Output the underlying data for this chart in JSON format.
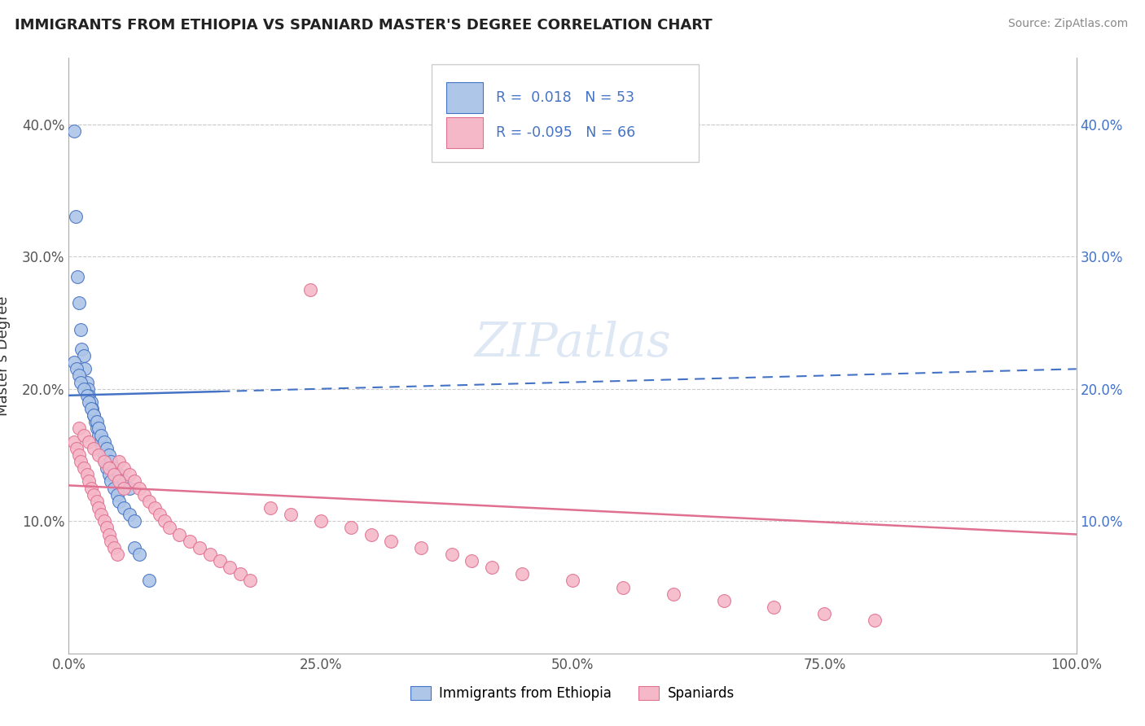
{
  "title": "IMMIGRANTS FROM ETHIOPIA VS SPANIARD MASTER'S DEGREE CORRELATION CHART",
  "source": "Source: ZipAtlas.com",
  "ylabel": "Master's Degree",
  "xlim": [
    0.0,
    1.0
  ],
  "ylim": [
    0.0,
    0.45
  ],
  "xticks": [
    0.0,
    0.25,
    0.5,
    0.75,
    1.0
  ],
  "xticklabels": [
    "0.0%",
    "25.0%",
    "50.0%",
    "75.0%",
    "100.0%"
  ],
  "yticks": [
    0.1,
    0.2,
    0.3,
    0.4
  ],
  "yticklabels": [
    "10.0%",
    "20.0%",
    "30.0%",
    "40.0%"
  ],
  "legend_labels": [
    "Immigrants from Ethiopia",
    "Spaniards"
  ],
  "r_blue": 0.018,
  "n_blue": 53,
  "r_pink": -0.095,
  "n_pink": 66,
  "blue_color": "#aec6e8",
  "pink_color": "#f5b8c8",
  "blue_line_color": "#4472c4",
  "pink_line_color": "#e07090",
  "watermark": "ZIPatlas",
  "blue_line_solid_end": 0.15,
  "blue_line_y0": 0.195,
  "blue_line_y1": 0.215,
  "pink_line_y0": 0.127,
  "pink_line_y1": 0.09,
  "blue_scatter_x": [
    0.005,
    0.007,
    0.009,
    0.01,
    0.012,
    0.013,
    0.015,
    0.016,
    0.018,
    0.019,
    0.02,
    0.022,
    0.023,
    0.025,
    0.026,
    0.028,
    0.03,
    0.032,
    0.033,
    0.035,
    0.036,
    0.038,
    0.04,
    0.042,
    0.045,
    0.048,
    0.05,
    0.055,
    0.06,
    0.065,
    0.005,
    0.008,
    0.01,
    0.012,
    0.015,
    0.018,
    0.02,
    0.022,
    0.025,
    0.028,
    0.03,
    0.032,
    0.035,
    0.038,
    0.04,
    0.042,
    0.045,
    0.05,
    0.055,
    0.06,
    0.065,
    0.07,
    0.08
  ],
  "blue_scatter_y": [
    0.395,
    0.33,
    0.285,
    0.265,
    0.245,
    0.23,
    0.225,
    0.215,
    0.205,
    0.2,
    0.195,
    0.19,
    0.185,
    0.18,
    0.175,
    0.17,
    0.165,
    0.16,
    0.155,
    0.15,
    0.145,
    0.14,
    0.135,
    0.13,
    0.125,
    0.12,
    0.115,
    0.11,
    0.105,
    0.1,
    0.22,
    0.215,
    0.21,
    0.205,
    0.2,
    0.195,
    0.19,
    0.185,
    0.18,
    0.175,
    0.17,
    0.165,
    0.16,
    0.155,
    0.15,
    0.145,
    0.14,
    0.135,
    0.13,
    0.125,
    0.08,
    0.075,
    0.055
  ],
  "pink_scatter_x": [
    0.005,
    0.008,
    0.01,
    0.012,
    0.015,
    0.018,
    0.02,
    0.022,
    0.025,
    0.028,
    0.03,
    0.032,
    0.035,
    0.038,
    0.04,
    0.042,
    0.045,
    0.048,
    0.05,
    0.055,
    0.06,
    0.065,
    0.07,
    0.075,
    0.08,
    0.085,
    0.09,
    0.095,
    0.1,
    0.11,
    0.12,
    0.13,
    0.14,
    0.15,
    0.16,
    0.17,
    0.18,
    0.2,
    0.22,
    0.25,
    0.28,
    0.3,
    0.32,
    0.35,
    0.38,
    0.4,
    0.42,
    0.45,
    0.5,
    0.55,
    0.6,
    0.65,
    0.7,
    0.75,
    0.8,
    0.01,
    0.015,
    0.02,
    0.025,
    0.03,
    0.035,
    0.04,
    0.045,
    0.05,
    0.055,
    0.24
  ],
  "pink_scatter_y": [
    0.16,
    0.155,
    0.15,
    0.145,
    0.14,
    0.135,
    0.13,
    0.125,
    0.12,
    0.115,
    0.11,
    0.105,
    0.1,
    0.095,
    0.09,
    0.085,
    0.08,
    0.075,
    0.145,
    0.14,
    0.135,
    0.13,
    0.125,
    0.12,
    0.115,
    0.11,
    0.105,
    0.1,
    0.095,
    0.09,
    0.085,
    0.08,
    0.075,
    0.07,
    0.065,
    0.06,
    0.055,
    0.11,
    0.105,
    0.1,
    0.095,
    0.09,
    0.085,
    0.08,
    0.075,
    0.07,
    0.065,
    0.06,
    0.055,
    0.05,
    0.045,
    0.04,
    0.035,
    0.03,
    0.025,
    0.17,
    0.165,
    0.16,
    0.155,
    0.15,
    0.145,
    0.14,
    0.135,
    0.13,
    0.125,
    0.275
  ]
}
